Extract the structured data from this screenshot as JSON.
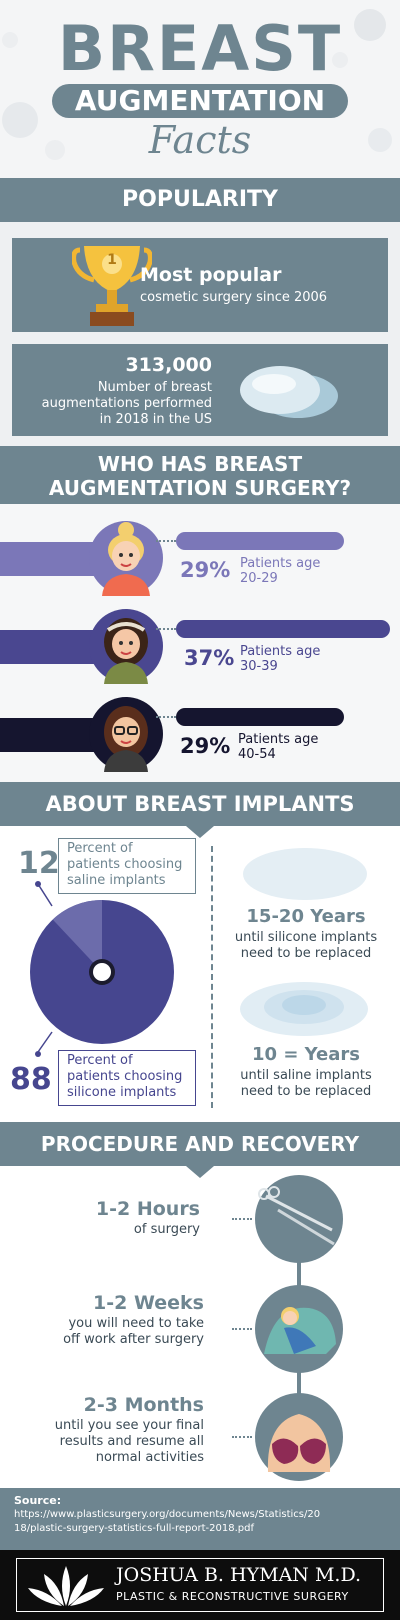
{
  "header": {
    "title_line1": "BREAST",
    "title_line2": "AUGMENTATION",
    "title_line3": "Facts"
  },
  "popularity": {
    "heading": "POPULARITY",
    "card1_title": "Most popular",
    "card1_text": "cosmetic surgery since 2006",
    "trophy_number": "1",
    "card2_number": "313,000",
    "card2_text_line1": "Number of breast",
    "card2_text_line2": "augmentations performed",
    "card2_text_line3": "in 2018 in the US"
  },
  "who": {
    "heading_line1": "WHO HAS BREAST",
    "heading_line2": "AUGMENTATION SURGERY?",
    "groups": [
      {
        "percent": "29%",
        "label_line1": "Patients age",
        "label_line2": "20-29",
        "value": 29,
        "color": "#7b77b8"
      },
      {
        "percent": "37%",
        "label_line1": "Patients age",
        "label_line2": "30-39",
        "value": 37,
        "color": "#4a4790"
      },
      {
        "percent": "29%",
        "label_line1": "Patients age",
        "label_line2": "40-54",
        "value": 29,
        "color": "#15152f"
      }
    ]
  },
  "implants": {
    "heading": "ABOUT BREAST IMPLANTS",
    "saline_number": "12",
    "saline_text_line1": "Percent of",
    "saline_text_line2": "patients choosing",
    "saline_text_line3": "saline implants",
    "silicone_number": "88",
    "silicone_text_line1": "Percent of",
    "silicone_text_line2": "patients choosing",
    "silicone_text_line3": "silicone implants",
    "saline_value": 12,
    "silicone_value": 88,
    "silicone_years_title": "15-20 Years",
    "silicone_years_line1": "until silicone implants",
    "silicone_years_line2": "need to be replaced",
    "saline_years_title": "10 = Years",
    "saline_years_line1": "until saline implants",
    "saline_years_line2": "need to be replaced"
  },
  "procedure": {
    "heading": "PROCEDURE AND RECOVERY",
    "step1_title": "1-2 Hours",
    "step1_line1": "of surgery",
    "step2_title": "1-2 Weeks",
    "step2_line1": "you will need to take",
    "step2_line2": "off work after surgery",
    "step3_title": "2-3 Months",
    "step3_line1": "until you see your final",
    "step3_line2": "results and resume all",
    "step3_line3": "normal activities"
  },
  "source": {
    "label": "Source:",
    "url_line1": "https://www.plasticsurgery.org/documents/News/Statistics/20",
    "url_line2": "18/plastic-surgery-statistics-full-report-2018.pdf"
  },
  "footer": {
    "name": "JOSHUA B. HYMAN M.D.",
    "subtitle": "PLASTIC & RECONSTRUCTIVE SURGERY"
  },
  "colors": {
    "slate": "#6e8590",
    "gold": "#f2b632",
    "purple_light": "#7b77b8",
    "purple_mid": "#4a4790",
    "purple_dark": "#15152f",
    "pie_main": "#46468f",
    "pie_slice": "#6c6cab"
  }
}
